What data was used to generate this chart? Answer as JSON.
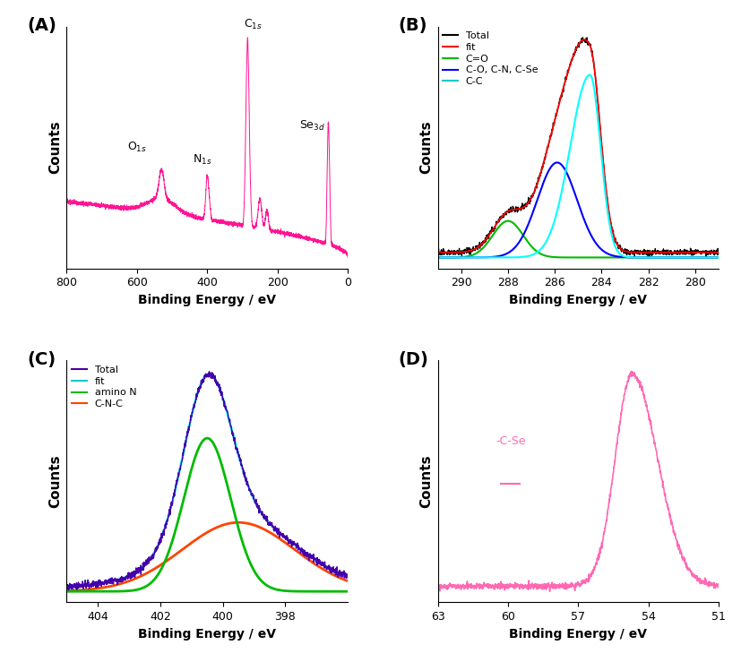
{
  "panel_A": {
    "label": "(A)",
    "xlabel": "Binding Energy / eV",
    "ylabel": "Counts",
    "xlim": [
      800,
      0
    ],
    "color": "#FF1493",
    "xticks": [
      800,
      600,
      400,
      200,
      0
    ]
  },
  "panel_B": {
    "label": "(B)",
    "xlabel": "Binding Energy / eV",
    "ylabel": "Counts",
    "xlim": [
      291,
      279
    ],
    "legend": [
      {
        "label": "Total",
        "color": "#000000"
      },
      {
        "label": "fit",
        "color": "#FF0000"
      },
      {
        "label": "C=O",
        "color": "#00BB00"
      },
      {
        "label": "C-O, C-N, C-Se",
        "color": "#0000FF"
      },
      {
        "label": "C-C",
        "color": "#00CCCC"
      }
    ],
    "xticks": [
      290,
      288,
      286,
      284,
      282,
      280
    ]
  },
  "panel_C": {
    "label": "(C)",
    "xlabel": "Binding Energy / eV",
    "ylabel": "Counts",
    "xlim": [
      405,
      396
    ],
    "legend": [
      {
        "label": "Total",
        "color": "#4400AA"
      },
      {
        "label": "fit",
        "color": "#00CCCC"
      },
      {
        "label": "amino N",
        "color": "#00BB00"
      },
      {
        "label": "C-N-C",
        "color": "#FF4400"
      }
    ],
    "xticks": [
      404,
      402,
      400,
      398
    ]
  },
  "panel_D": {
    "label": "(D)",
    "xlabel": "Binding Energy / eV",
    "ylabel": "Counts",
    "xlim": [
      63,
      51
    ],
    "color": "#FF69B4",
    "annotation": "-C-Se",
    "xticks": [
      63,
      60,
      57,
      54,
      51
    ]
  },
  "figure": {
    "bg_color": "#FFFFFF",
    "dpi": 100,
    "figsize": [
      8.27,
      7.39
    ]
  }
}
